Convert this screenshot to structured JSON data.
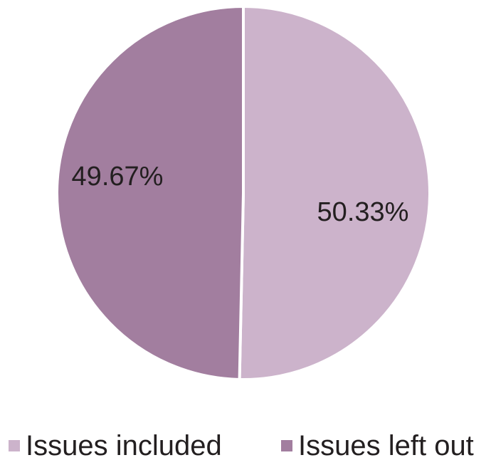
{
  "chart_data": {
    "type": "pie",
    "categories": [
      "Issues included",
      "Issues left out"
    ],
    "values": [
      50.33,
      49.67
    ],
    "data_labels": [
      "50.33%",
      "49.67%"
    ],
    "colors": [
      "#ccb3cb",
      "#a27e9f"
    ],
    "start_angle": "12 o'clock, clockwise",
    "legend_position": "bottom"
  }
}
